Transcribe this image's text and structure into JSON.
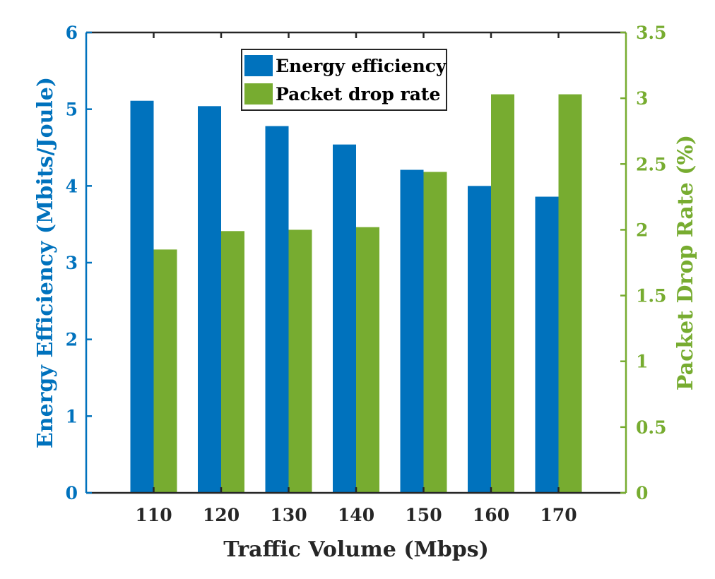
{
  "chart_data": {
    "type": "bar",
    "title": "",
    "xlabel": "Traffic Volume (Mbps)",
    "categories": [
      "110",
      "120",
      "130",
      "140",
      "150",
      "160",
      "170"
    ],
    "x_range": [
      100,
      180
    ],
    "series": [
      {
        "name": "Energy efficiency",
        "axis": "left",
        "color": "#0072BD",
        "values": [
          5.11,
          5.04,
          4.78,
          4.54,
          4.21,
          4.0,
          3.86
        ]
      },
      {
        "name": "Packet drop rate",
        "axis": "right",
        "color": "#77AC30",
        "values": [
          1.85,
          1.99,
          2.0,
          2.02,
          2.44,
          3.03,
          3.03
        ]
      }
    ],
    "y_left": {
      "label": "Energy Efficiency (Mbits/Joule)",
      "ylim": [
        0,
        6
      ],
      "ticks": [
        "0",
        "1",
        "2",
        "3",
        "4",
        "5",
        "6"
      ],
      "color": "#0072BD"
    },
    "y_right": {
      "label": "Packet Drop Rate (%)",
      "ylim": [
        0,
        3.5
      ],
      "ticks": [
        "0",
        "0.5",
        "1",
        "1.5",
        "2",
        "2.5",
        "3",
        "3.5"
      ],
      "color": "#77AC30"
    },
    "legend": {
      "position": "top-center"
    },
    "grid": false
  }
}
